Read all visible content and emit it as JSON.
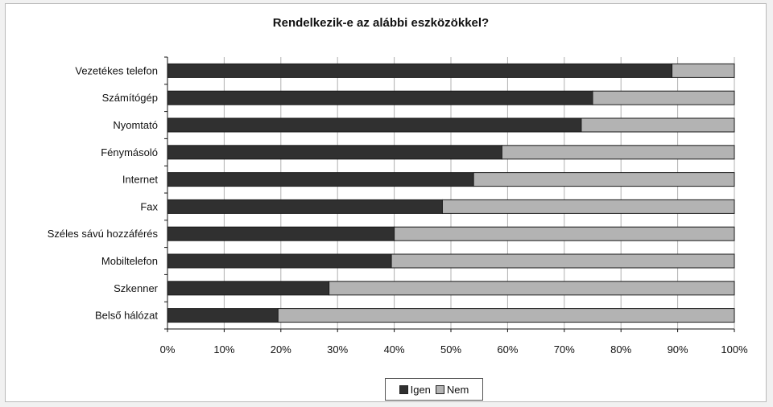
{
  "chart_data": {
    "type": "bar",
    "orientation": "horizontal",
    "stacked": "percent",
    "title": "Rendelkezik-e az alábbi eszközökkel?",
    "categories": [
      "Vezetékes telefon",
      "Számítógép",
      "Nyomtató",
      "Fénymásoló",
      "Internet",
      "Fax",
      "Széles sávú hozzáférés",
      "Mobiltelefon",
      "Szkenner",
      "Belső hálózat"
    ],
    "series": [
      {
        "name": "Igen",
        "color": "#303030",
        "values": [
          89,
          75,
          73,
          59,
          54,
          48.5,
          40,
          39.5,
          28.5,
          19.5
        ]
      },
      {
        "name": "Nem",
        "color": "#b3b3b3",
        "values": [
          11,
          25,
          27,
          41,
          46,
          51.5,
          60,
          60.5,
          71.5,
          80.5
        ]
      }
    ],
    "x_ticks": [
      "0%",
      "10%",
      "20%",
      "30%",
      "40%",
      "50%",
      "60%",
      "70%",
      "80%",
      "90%",
      "100%"
    ],
    "xlim": [
      0,
      100
    ],
    "grid": "vertical",
    "legend_position": "bottom"
  }
}
